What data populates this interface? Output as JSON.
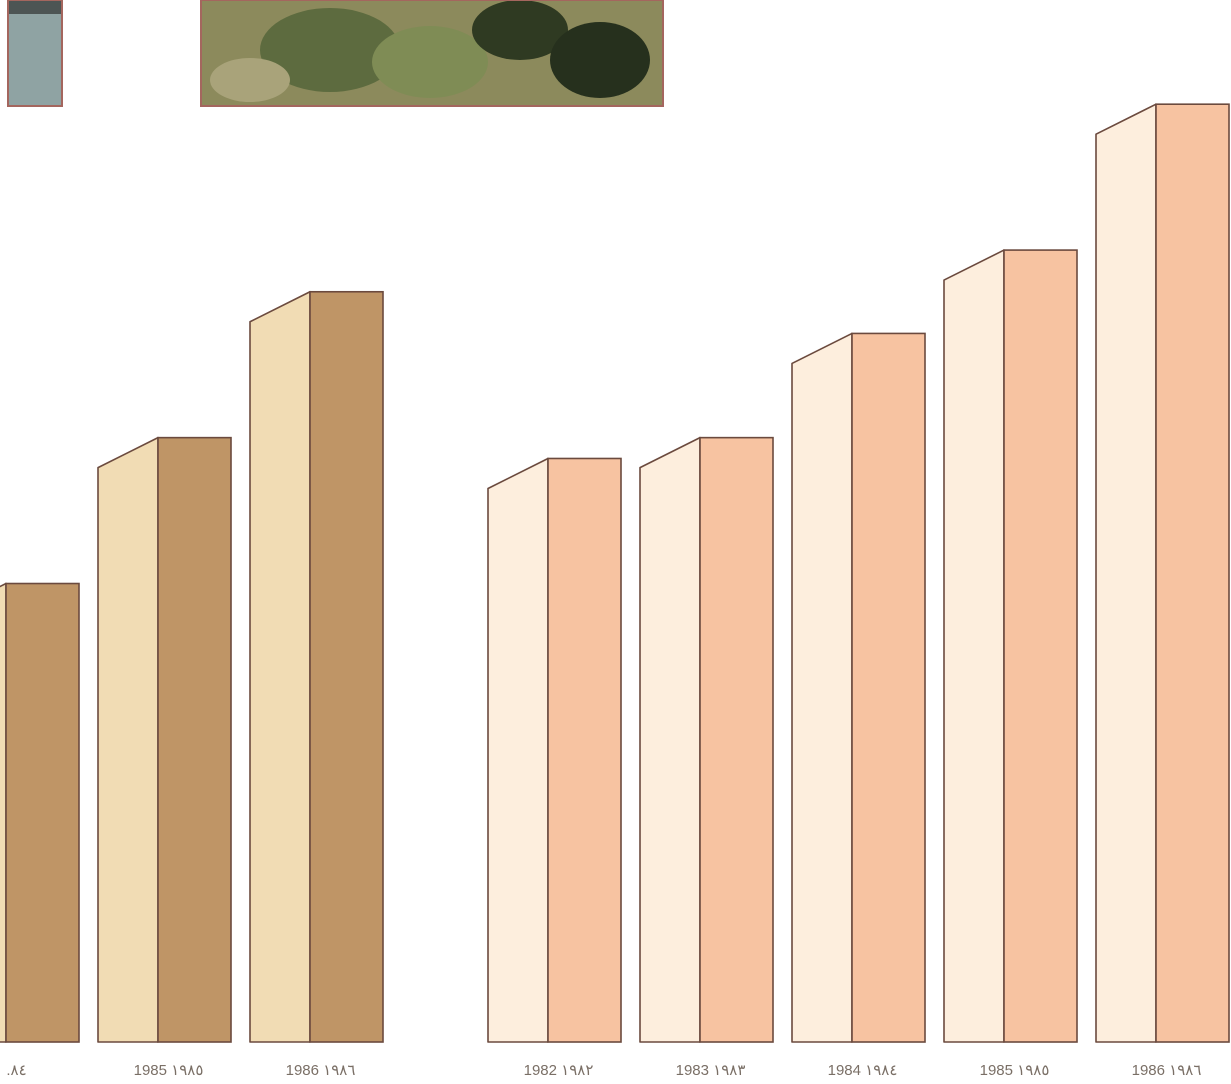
{
  "colors": {
    "frame": "#6b4a3e",
    "left_side": "#f1dcb4",
    "left_front": "#bf9566",
    "right_side": "#fdeedd",
    "right_front": "#f7c3a1",
    "photo_left": "#8fa3a3",
    "photo_main": "#6f7d4f"
  },
  "chart_data": [
    {
      "type": "bar",
      "style": "3d-bars",
      "categories": [
        ".٨٤",
        "1985 ١٩٨٥",
        "1986 ١٩٨٦"
      ],
      "values": [
        44,
        58,
        72
      ],
      "ylim": [
        0,
        100
      ],
      "grid": false
    },
    {
      "type": "bar",
      "style": "3d-bars",
      "categories": [
        "1982 ١٩٨٢",
        "1983 ١٩٨٣",
        "1984 ١٩٨٤",
        "1985 ١٩٨٥",
        "1986 ١٩٨٦"
      ],
      "values": [
        56,
        58,
        68,
        76,
        90
      ],
      "ylim": [
        0,
        100
      ],
      "grid": false
    }
  ]
}
